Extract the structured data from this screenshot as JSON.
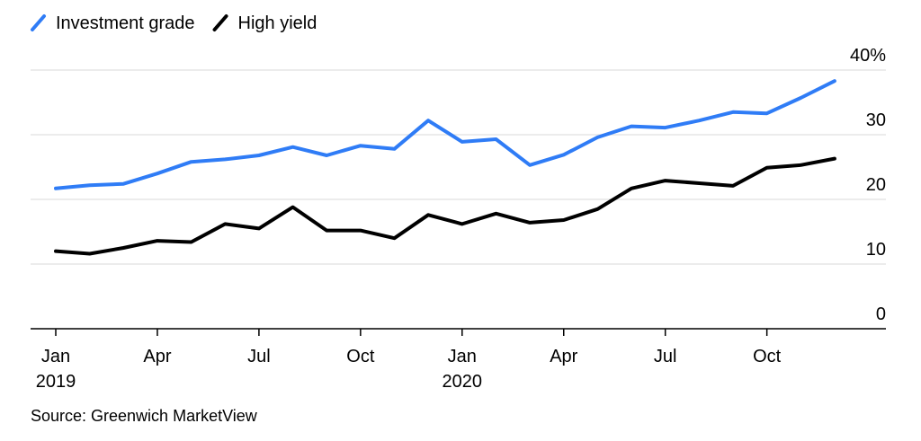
{
  "chart_data": {
    "type": "line",
    "x": [
      "2019-01",
      "2019-02",
      "2019-03",
      "2019-04",
      "2019-05",
      "2019-06",
      "2019-07",
      "2019-08",
      "2019-09",
      "2019-10",
      "2019-11",
      "2019-12",
      "2020-01",
      "2020-02",
      "2020-03",
      "2020-04",
      "2020-05",
      "2020-06",
      "2020-07",
      "2020-08",
      "2020-09",
      "2020-10",
      "2020-11",
      "2020-12"
    ],
    "series": [
      {
        "name": "Investment grade",
        "color": "#2f7cf6",
        "values": [
          21.7,
          22.2,
          22.4,
          24.0,
          25.8,
          26.2,
          26.8,
          28.1,
          26.8,
          28.3,
          27.8,
          32.2,
          28.9,
          29.3,
          25.3,
          26.9,
          29.6,
          31.3,
          31.1,
          32.2,
          33.5,
          33.3,
          35.7,
          38.3
        ]
      },
      {
        "name": "High yield",
        "color": "#000000",
        "values": [
          12.0,
          11.6,
          12.5,
          13.6,
          13.4,
          16.2,
          15.5,
          18.8,
          15.2,
          15.2,
          14.0,
          17.6,
          16.2,
          17.8,
          16.4,
          16.8,
          18.5,
          21.7,
          22.9,
          22.5,
          22.1,
          24.9,
          25.3,
          26.3
        ]
      }
    ],
    "ylim": [
      0,
      40
    ],
    "yticks": [
      0,
      10,
      20,
      30,
      40
    ],
    "ytick_labels": [
      "0",
      "10",
      "20",
      "30",
      "40%"
    ],
    "xticks": [
      {
        "x": "2019-01",
        "label": "Jan",
        "sublabel": "2019"
      },
      {
        "x": "2019-04",
        "label": "Apr",
        "sublabel": ""
      },
      {
        "x": "2019-07",
        "label": "Jul",
        "sublabel": ""
      },
      {
        "x": "2019-10",
        "label": "Oct",
        "sublabel": ""
      },
      {
        "x": "2020-01",
        "label": "Jan",
        "sublabel": "2020"
      },
      {
        "x": "2020-04",
        "label": "Apr",
        "sublabel": ""
      },
      {
        "x": "2020-07",
        "label": "Jul",
        "sublabel": ""
      },
      {
        "x": "2020-10",
        "label": "Oct",
        "sublabel": ""
      }
    ],
    "grid": true,
    "legend": "top-left"
  },
  "source": "Source: Greenwich MarketView"
}
